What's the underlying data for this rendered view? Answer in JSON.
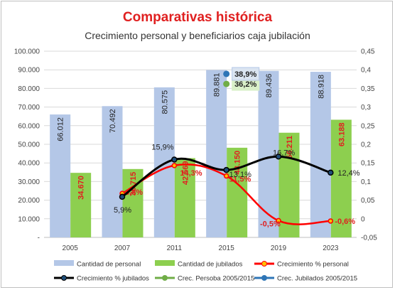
{
  "chart_data": {
    "type": "bar",
    "title": "Comparativas histórica",
    "subtitle": "Crecimiento personal y beneficiarios caja jubilación",
    "categories": [
      "2005",
      "2007",
      "2011",
      "2015",
      "2019",
      "2023"
    ],
    "y_left": {
      "ylim": [
        0,
        100000
      ],
      "ticks": [
        "-",
        "10.000",
        "20.000",
        "30.000",
        "40.000",
        "50.000",
        "60.000",
        "70.000",
        "80.000",
        "90.000",
        "100.000"
      ]
    },
    "y_right": {
      "ylim": [
        -0.05,
        0.45
      ],
      "ticks": [
        "-0,05",
        "0",
        "0,05",
        "0,1",
        "0,15",
        "0,2",
        "0,25",
        "0,3",
        "0,35",
        "0,4",
        "0,45"
      ]
    },
    "bar_series": [
      {
        "name": "Cantidad de personal",
        "color": "#b4c7e7",
        "values": [
          66012,
          70492,
          80575,
          89881,
          89436,
          88918
        ],
        "labels": [
          "66.012",
          "70.492",
          "80.575",
          "89.881",
          "89.436",
          "88.918"
        ],
        "label_color": "#222222"
      },
      {
        "name": "Cantidad de jubilados",
        "color": "#8dcf4f",
        "values": [
          34670,
          36715,
          42569,
          48150,
          56211,
          63188
        ],
        "labels": [
          "34.670",
          "36.715",
          "42.569",
          "48.150",
          "56.211",
          "63.188"
        ],
        "label_color": "#e02020"
      }
    ],
    "line_series": [
      {
        "name": "Crecimiento % personal",
        "color": "#ff0000",
        "categories": [
          "2007",
          "2011",
          "2015",
          "2019",
          "2023"
        ],
        "values": [
          0.068,
          0.143,
          0.115,
          -0.005,
          -0.006
        ],
        "labels": [
          "6,8%",
          "14,3%",
          "11,5%",
          "-0,5%",
          "-0,6%"
        ],
        "label_color": "#e02020"
      },
      {
        "name": "Crecimiento % jubilados",
        "color": "#000000",
        "categories": [
          "2007",
          "2011",
          "2015",
          "2019",
          "2023"
        ],
        "values": [
          0.059,
          0.159,
          0.131,
          0.167,
          0.124
        ],
        "labels": [
          "5,9%",
          "15,9%",
          "13,1%",
          "16,7%",
          "12,4%"
        ],
        "label_color": "#222222"
      }
    ],
    "points": [
      {
        "name": "Crec. Persoba 2005/2015",
        "color": "#70ad47",
        "category": "2015",
        "value": 0.362,
        "label": "36,2%"
      },
      {
        "name": "Crec. Jubilados 2005/2015",
        "color": "#2e75b6",
        "category": "2015",
        "value": 0.389,
        "label": "38,9%"
      }
    ],
    "grid": true,
    "legend_position": "bottom"
  }
}
